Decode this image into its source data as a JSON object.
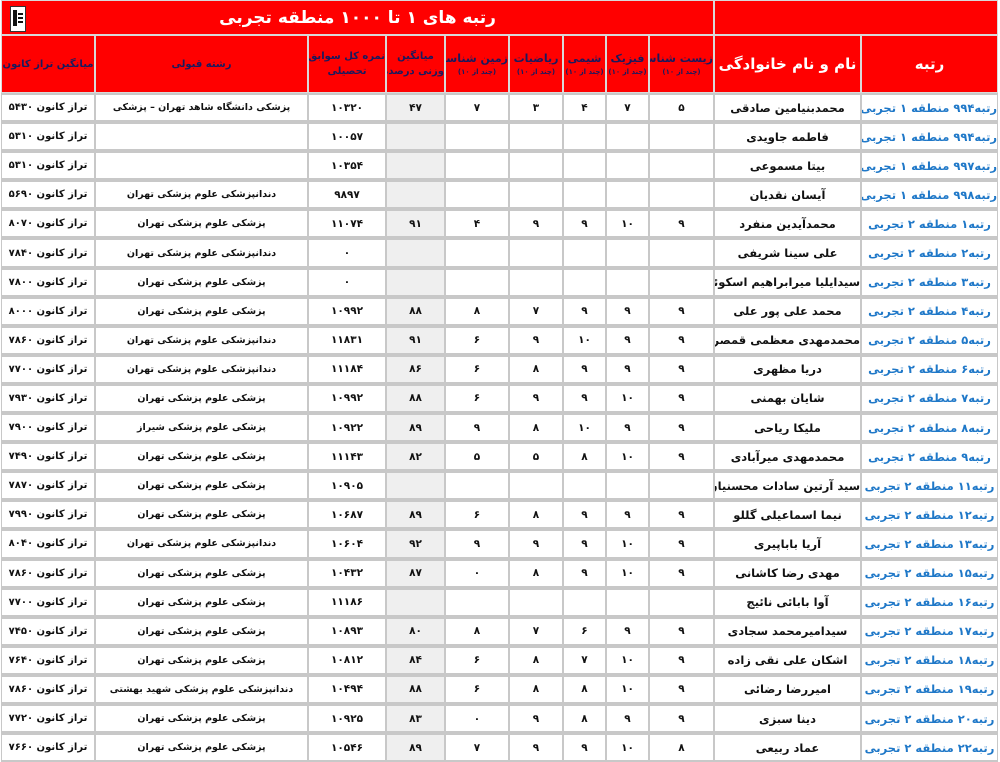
{
  "title": "رتبه های ۱ تا ۱۰۰۰ منطقه تجربی",
  "logo_text": "قلم چی",
  "colors": {
    "header_bg": "#ff0000",
    "rank_text": "#1f78c8",
    "avg_column_bg": "#efefef"
  },
  "headers": {
    "rank": "رتبه",
    "name": "نام و نام خانوادگی",
    "biology": "زیست شناسی",
    "physics": "فیزیک",
    "chemistry": "شیمی",
    "math": "ریاضیات",
    "geology": "زمین شناسی",
    "out_of_10": "(چند از ۱۰)",
    "avg_line1": "میانگین",
    "avg_line2": "وزنی درصدها",
    "total_line1": "نمره کل سوابق",
    "total_line2": "تحصیلی",
    "major": "رشته قبولی",
    "taraz": "میانگین تراز کانون"
  },
  "rows": [
    {
      "rank": "رتبه۹۹۴ منطقه ۱ تجربی",
      "name": "محمدبنیامین صادقی",
      "biology": "۵",
      "physics": "۷",
      "chemistry": "۴",
      "math": "۳",
      "geology": "۷",
      "avg": "۴۷",
      "total": "۱۰۳۲۰",
      "major": "پزشکی دانشگاه شاهد تهران – پزشکی",
      "taraz": "تراز کانون ۵۴۳۰"
    },
    {
      "rank": "رتبه۹۹۴ منطقه ۱ تجربی",
      "name": "فاطمه جاویدی",
      "biology": "",
      "physics": "",
      "chemistry": "",
      "math": "",
      "geology": "",
      "avg": "",
      "total": "۱۰۰۵۷",
      "major": "",
      "taraz": "تراز کانون ۵۳۱۰"
    },
    {
      "rank": "رتبه۹۹۷ منطقه ۱ تجربی",
      "name": "بیتا مسموعی",
      "biology": "",
      "physics": "",
      "chemistry": "",
      "math": "",
      "geology": "",
      "avg": "",
      "total": "۱۰۳۵۴",
      "major": "",
      "taraz": "تراز کانون ۵۳۱۰"
    },
    {
      "rank": "رتبه۹۹۸ منطقه ۱ تجربی",
      "name": "آیسان نقدیان",
      "biology": "",
      "physics": "",
      "chemistry": "",
      "math": "",
      "geology": "",
      "avg": "",
      "total": "۹۸۹۷",
      "major": "دندانپزشکی علوم پزشکی تهران",
      "taraz": "تراز کانون ۵۶۹۰"
    },
    {
      "rank": "رتبه۱ منطقه ۲ تجربی",
      "name": "محمدآیدین منفرد",
      "biology": "۹",
      "physics": "۱۰",
      "chemistry": "۹",
      "math": "۹",
      "geology": "۴",
      "avg": "۹۱",
      "total": "۱۱۰۷۴",
      "major": "پزشکی علوم پزشکی تهران",
      "taraz": "تراز کانون ۸۰۷۰"
    },
    {
      "rank": "رتبه۲ منطقه ۲ تجربی",
      "name": "علی سینا شریفی",
      "biology": "",
      "physics": "",
      "chemistry": "",
      "math": "",
      "geology": "",
      "avg": "",
      "total": "۰",
      "major": "دندانپزشکی علوم پزشکی تهران",
      "taraz": "تراز کانون ۷۸۴۰"
    },
    {
      "rank": "رتبه۳ منطقه ۲ تجربی",
      "name": "سیدایلیا میرابراهیم اسکوئی",
      "biology": "",
      "physics": "",
      "chemistry": "",
      "math": "",
      "geology": "",
      "avg": "",
      "total": "۰",
      "major": "پزشکی علوم پزشکی تهران",
      "taraz": "تراز کانون ۷۸۰۰"
    },
    {
      "rank": "رتبه۴ منطقه ۲ تجربی",
      "name": "محمد علی پور علی",
      "biology": "۹",
      "physics": "۹",
      "chemistry": "۹",
      "math": "۷",
      "geology": "۸",
      "avg": "۸۸",
      "total": "۱۰۹۹۲",
      "major": "پزشکی علوم پزشکی تهران",
      "taraz": "تراز کانون ۸۰۰۰"
    },
    {
      "rank": "رتبه۵ منطقه ۲ تجربی",
      "name": "محمدمهدی معظمی قمصری",
      "biology": "۹",
      "physics": "۹",
      "chemistry": "۱۰",
      "math": "۹",
      "geology": "۶",
      "avg": "۹۱",
      "total": "۱۱۸۳۱",
      "major": "دندانپزشکی علوم پزشکی تهران",
      "taraz": "تراز کانون ۷۸۶۰"
    },
    {
      "rank": "رتبه۶ منطقه ۲ تجربی",
      "name": "دریا مظهری",
      "biology": "۹",
      "physics": "۹",
      "chemistry": "۹",
      "math": "۸",
      "geology": "۶",
      "avg": "۸۶",
      "total": "۱۱۱۸۴",
      "major": "دندانپزشکی علوم پزشکی تهران",
      "taraz": "تراز کانون ۷۷۰۰"
    },
    {
      "rank": "رتبه۷ منطقه ۲ تجربی",
      "name": "شایان بهمنی",
      "biology": "۹",
      "physics": "۱۰",
      "chemistry": "۹",
      "math": "۹",
      "geology": "۶",
      "avg": "۸۸",
      "total": "۱۰۹۹۲",
      "major": "پزشکی علوم پزشکی تهران",
      "taraz": "تراز کانون ۷۹۳۰"
    },
    {
      "rank": "رتبه۸ منطقه ۲ تجربی",
      "name": "ملیکا ریاحی",
      "biology": "۹",
      "physics": "۹",
      "chemistry": "۱۰",
      "math": "۸",
      "geology": "۹",
      "avg": "۸۹",
      "total": "۱۰۹۲۲",
      "major": "پزشکی علوم پزشکی شیراز",
      "taraz": "تراز کانون ۷۹۰۰"
    },
    {
      "rank": "رتبه۹ منطقه ۲ تجربی",
      "name": "محمدمهدی میرآبادی",
      "biology": "۹",
      "physics": "۱۰",
      "chemistry": "۸",
      "math": "۵",
      "geology": "۵",
      "avg": "۸۲",
      "total": "۱۱۱۴۳",
      "major": "پزشکی علوم پزشکی تهران",
      "taraz": "تراز کانون ۷۴۹۰"
    },
    {
      "rank": "رتبه۱۱ منطقه ۲ تجربی",
      "name": "سید آرتین سادات محسنیان",
      "biology": "",
      "physics": "",
      "chemistry": "",
      "math": "",
      "geology": "",
      "avg": "",
      "total": "۱۰۹۰۵",
      "major": "پزشکی علوم پزشکی تهران",
      "taraz": "تراز کانون ۷۸۷۰"
    },
    {
      "rank": "رتبه۱۲ منطقه ۲ تجربی",
      "name": "نیما اسماعیلی گللو",
      "biology": "۹",
      "physics": "۹",
      "chemistry": "۹",
      "math": "۸",
      "geology": "۶",
      "avg": "۸۹",
      "total": "۱۰۶۸۷",
      "major": "پزشکی علوم پزشکی تهران",
      "taraz": "تراز کانون ۷۹۹۰"
    },
    {
      "rank": "رتبه۱۳ منطقه ۲ تجربی",
      "name": "آریا باباپیری",
      "biology": "۹",
      "physics": "۱۰",
      "chemistry": "۹",
      "math": "۹",
      "geology": "۹",
      "avg": "۹۲",
      "total": "۱۰۶۰۴",
      "major": "دندانپزشکی علوم پزشکی تهران",
      "taraz": "تراز کانون ۸۰۴۰"
    },
    {
      "rank": "رتبه۱۵ منطقه ۲ تجربی",
      "name": "مهدی رضا کاشانی",
      "biology": "۹",
      "physics": "۱۰",
      "chemistry": "۹",
      "math": "۸",
      "geology": "۰",
      "avg": "۸۷",
      "total": "۱۰۴۳۲",
      "major": "پزشکی علوم پزشکی تهران",
      "taraz": "تراز کانون ۷۸۶۰"
    },
    {
      "rank": "رتبه۱۶ منطقه ۲ تجربی",
      "name": "آوا بابائی نائیج",
      "biology": "",
      "physics": "",
      "chemistry": "",
      "math": "",
      "geology": "",
      "avg": "",
      "total": "۱۱۱۸۶",
      "major": "پزشکی علوم پزشکی تهران",
      "taraz": "تراز کانون ۷۷۰۰"
    },
    {
      "rank": "رتبه۱۷ منطقه ۲ تجربی",
      "name": "سیدامیرمحمد سجادی",
      "biology": "۹",
      "physics": "۹",
      "chemistry": "۶",
      "math": "۷",
      "geology": "۸",
      "avg": "۸۰",
      "total": "۱۰۸۹۳",
      "major": "پزشکی علوم پزشکی تهران",
      "taraz": "تراز کانون ۷۴۵۰"
    },
    {
      "rank": "رتبه۱۸ منطقه ۲ تجربی",
      "name": "اشکان علی نقی زاده",
      "biology": "۹",
      "physics": "۱۰",
      "chemistry": "۷",
      "math": "۸",
      "geology": "۶",
      "avg": "۸۴",
      "total": "۱۰۸۱۲",
      "major": "پزشکی علوم پزشکی تهران",
      "taraz": "تراز کانون ۷۶۴۰"
    },
    {
      "rank": "رتبه۱۹ منطقه ۲ تجربی",
      "name": "امیررضا رضائی",
      "biology": "۹",
      "physics": "۱۰",
      "chemistry": "۸",
      "math": "۸",
      "geology": "۶",
      "avg": "۸۸",
      "total": "۱۰۴۹۴",
      "major": "دندانپزشکی علوم پزشکی شهید بهشتی",
      "taraz": "تراز کانون ۷۸۶۰"
    },
    {
      "rank": "رتبه۲۰ منطقه ۲ تجربی",
      "name": "دینا سبزی",
      "biology": "۹",
      "physics": "۹",
      "chemistry": "۸",
      "math": "۹",
      "geology": "۰",
      "avg": "۸۳",
      "total": "۱۰۹۲۵",
      "major": "پزشکی علوم پزشکی تهران",
      "taraz": "تراز کانون ۷۷۲۰"
    },
    {
      "rank": "رتبه۲۲ منطقه ۲ تجربی",
      "name": "عماد ربیعی",
      "biology": "۸",
      "physics": "۱۰",
      "chemistry": "۹",
      "math": "۹",
      "geology": "۷",
      "avg": "۸۹",
      "total": "۱۰۵۴۶",
      "major": "پزشکی علوم پزشکی تهران",
      "taraz": "تراز کانون ۷۶۶۰"
    }
  ]
}
